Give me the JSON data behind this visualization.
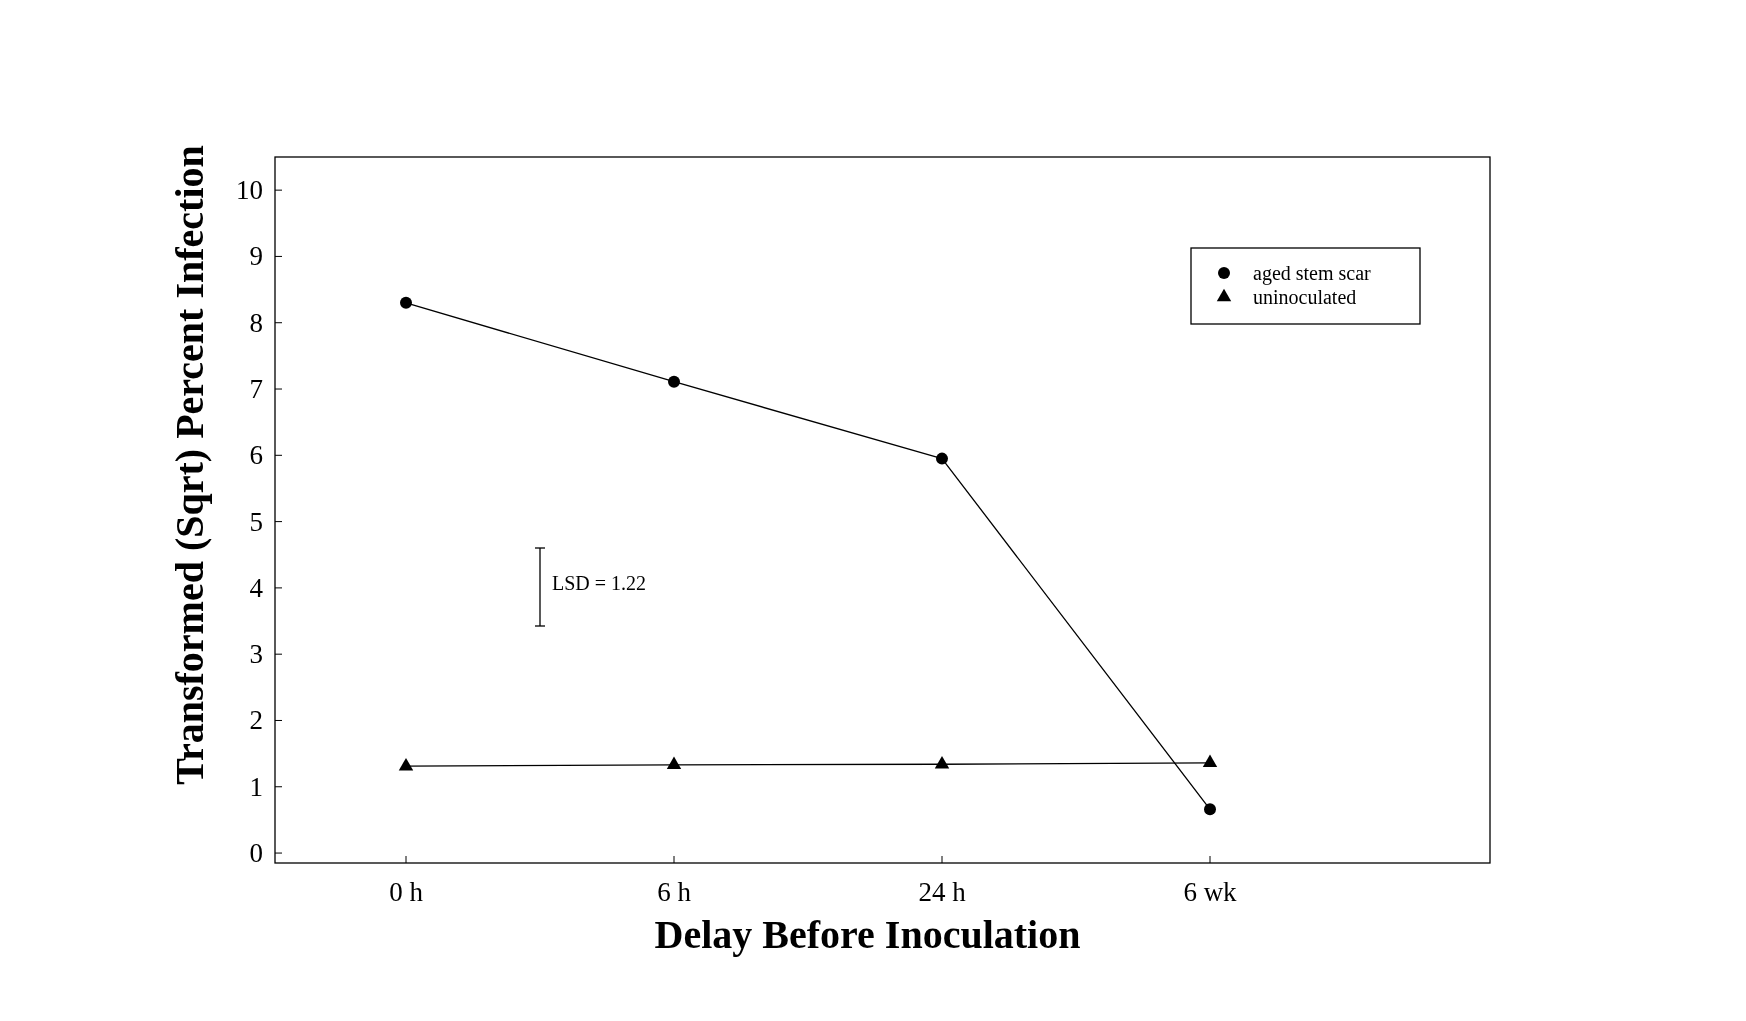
{
  "chart_data": {
    "type": "line",
    "xlabel": "Delay Before Inoculation",
    "ylabel": "Transformed (Sqrt) Percent Infection",
    "categories": [
      "0 h",
      "6 h",
      "24 h",
      "6 wk"
    ],
    "series": [
      {
        "name": "aged stem scar",
        "color": "#000000",
        "marker": "circle",
        "values": [
          8.3,
          7.11,
          5.95,
          0.66
        ]
      },
      {
        "name": "uninoculated",
        "color": "#000000",
        "marker": "triangle",
        "values": [
          1.31,
          1.33,
          1.34,
          1.36
        ]
      }
    ],
    "ylim": [
      -0.15,
      10.5
    ],
    "yticks": [
      0,
      1,
      2,
      3,
      4,
      5,
      6,
      7,
      8,
      9,
      10
    ],
    "legend": "top right",
    "grid": false,
    "annotations": [
      "LSD = 1.22"
    ]
  }
}
